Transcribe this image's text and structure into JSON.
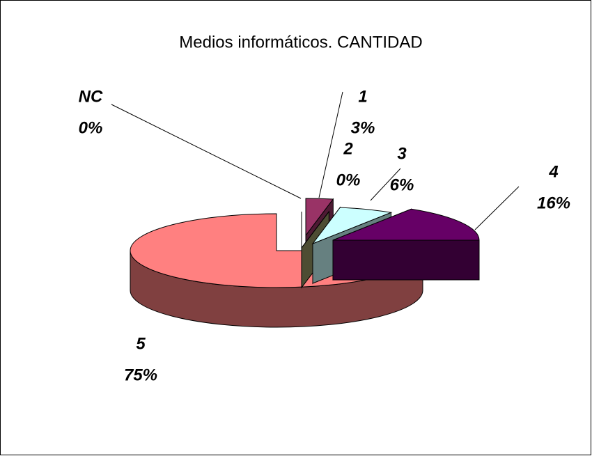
{
  "chart_data": {
    "type": "pie",
    "title": "Medios informáticos. CANTIDAD",
    "categories": [
      "1",
      "2",
      "3",
      "4",
      "5",
      "NC"
    ],
    "values": [
      3,
      0,
      6,
      16,
      75,
      0
    ],
    "value_labels": [
      "3%",
      "0%",
      "6%",
      "16%",
      "75%",
      "0%"
    ],
    "colors": [
      "#993366",
      "#999966",
      "#ccffff",
      "#660066",
      "#ff8080",
      "#ccccff"
    ]
  }
}
